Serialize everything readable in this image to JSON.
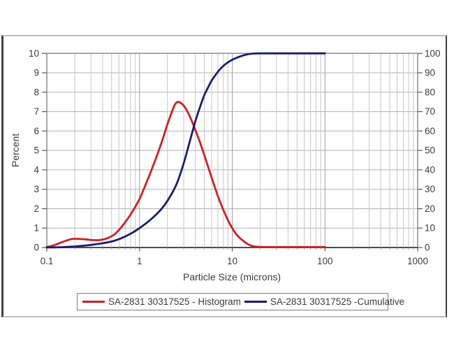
{
  "chart_data": {
    "type": "line",
    "xlabel": "Particle Size (microns)",
    "ylabel_left": "Percent",
    "x_scale": "log",
    "xlim": [
      0.1,
      1000
    ],
    "ylim_left": [
      0,
      10
    ],
    "ylim_right": [
      0,
      100
    ],
    "x_ticks": [
      0.1,
      1,
      10,
      100,
      1000
    ],
    "x_tick_labels": [
      "0.1",
      "1",
      "10",
      "100",
      "1000"
    ],
    "y_ticks_left": [
      0,
      1,
      2,
      3,
      4,
      5,
      6,
      7,
      8,
      9,
      10
    ],
    "y_ticks_right": [
      0,
      10,
      20,
      30,
      40,
      50,
      60,
      70,
      80,
      90,
      100
    ],
    "grid": true,
    "legend_position": "bottom",
    "series": [
      {
        "name": "SA-2831 30317525 - Histogram",
        "color": "#cc2026",
        "axis": "left",
        "units": "percent per bin",
        "points": [
          [
            0.1,
            0.03
          ],
          [
            0.12,
            0.12
          ],
          [
            0.15,
            0.3
          ],
          [
            0.18,
            0.42
          ],
          [
            0.2,
            0.45
          ],
          [
            0.25,
            0.43
          ],
          [
            0.3,
            0.39
          ],
          [
            0.37,
            0.38
          ],
          [
            0.45,
            0.48
          ],
          [
            0.55,
            0.72
          ],
          [
            0.7,
            1.3
          ],
          [
            0.85,
            1.9
          ],
          [
            1,
            2.5
          ],
          [
            1.2,
            3.4
          ],
          [
            1.4,
            4.2
          ],
          [
            1.7,
            5.3
          ],
          [
            2,
            6.35
          ],
          [
            2.2,
            6.9
          ],
          [
            2.4,
            7.35
          ],
          [
            2.6,
            7.5
          ],
          [
            2.9,
            7.38
          ],
          [
            3.2,
            7.1
          ],
          [
            3.6,
            6.6
          ],
          [
            4,
            6.05
          ],
          [
            4.5,
            5.4
          ],
          [
            5,
            4.75
          ],
          [
            5.5,
            4.15
          ],
          [
            6,
            3.6
          ],
          [
            7,
            2.65
          ],
          [
            8,
            1.95
          ],
          [
            9,
            1.4
          ],
          [
            10,
            1.0
          ],
          [
            11,
            0.7
          ],
          [
            12,
            0.5
          ],
          [
            13.5,
            0.3
          ],
          [
            15,
            0.15
          ],
          [
            17,
            0.06
          ],
          [
            20,
            0.03
          ],
          [
            25,
            0.02
          ],
          [
            40,
            0.02
          ],
          [
            70,
            0.02
          ],
          [
            100,
            0.02
          ]
        ]
      },
      {
        "name": "SA-2831 30317525 -Cumulative",
        "color": "#1c1c6e",
        "axis": "right",
        "units": "cumulative percent",
        "points": [
          [
            0.1,
            0.02
          ],
          [
            0.12,
            0.08
          ],
          [
            0.15,
            0.2
          ],
          [
            0.2,
            0.55
          ],
          [
            0.25,
            0.95
          ],
          [
            0.3,
            1.35
          ],
          [
            0.4,
            2.2
          ],
          [
            0.5,
            3.1
          ],
          [
            0.6,
            4.3
          ],
          [
            0.7,
            5.7
          ],
          [
            0.85,
            7.8
          ],
          [
            1,
            10
          ],
          [
            1.2,
            12.8
          ],
          [
            1.4,
            15.5
          ],
          [
            1.7,
            19.5
          ],
          [
            2,
            24
          ],
          [
            2.5,
            32.5
          ],
          [
            3,
            43.5
          ],
          [
            3.5,
            55
          ],
          [
            4,
            65
          ],
          [
            4.5,
            72.5
          ],
          [
            5,
            78.5
          ],
          [
            5.5,
            82.5
          ],
          [
            6,
            86
          ],
          [
            7,
            90.5
          ],
          [
            8,
            93.5
          ],
          [
            9,
            95.4
          ],
          [
            10,
            96.7
          ],
          [
            11,
            97.6
          ],
          [
            12,
            98.3
          ],
          [
            13.5,
            99.1
          ],
          [
            15,
            99.6
          ],
          [
            17,
            99.9
          ],
          [
            20,
            100
          ],
          [
            25,
            100
          ],
          [
            40,
            100
          ],
          [
            70,
            100
          ],
          [
            100,
            100
          ]
        ]
      }
    ]
  },
  "colors": {
    "grid_minor": "#c6c6c6",
    "grid_major": "#a0a0a0",
    "grid_horizontal": "#b2b2b2",
    "plot_border": "#8c8c8c",
    "axis_line": "#4c4c4c",
    "tick": "#5a5a5a",
    "text": "#3b3b3b"
  }
}
